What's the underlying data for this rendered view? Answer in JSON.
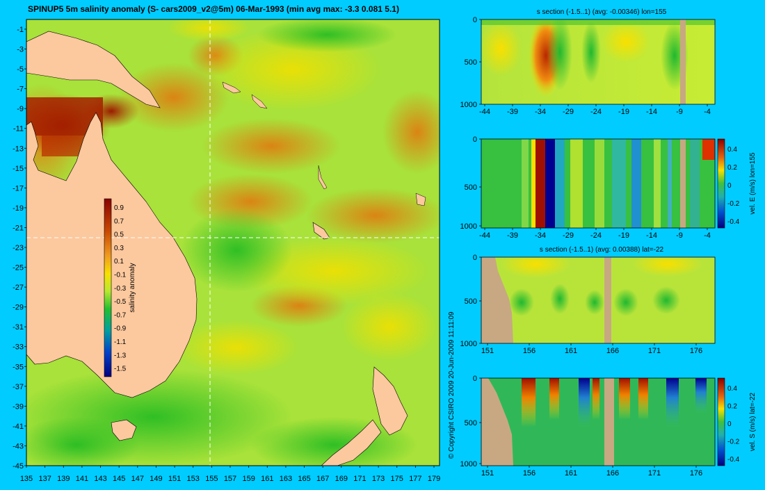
{
  "title": "SPINUP5 5m salinity anomaly (S- cars2009_v2@5m) 06-Mar-1993 (min avg max: -3.3 0.081 5.1)",
  "map": {
    "lat_ticks": [
      "-1",
      "-3",
      "-5",
      "-7",
      "-9",
      "-11",
      "-13",
      "-15",
      "-17",
      "-19",
      "-21",
      "-23",
      "-25",
      "-27",
      "-29",
      "-31",
      "-33",
      "-35",
      "-37",
      "-39",
      "-41",
      "-43",
      "-45"
    ],
    "lon_ticks": [
      "135",
      "137",
      "139",
      "141",
      "143",
      "145",
      "147",
      "149",
      "151",
      "153",
      "155",
      "157",
      "159",
      "161",
      "163",
      "165",
      "167",
      "169",
      "171",
      "173",
      "175",
      "177",
      "179"
    ],
    "colorbar": {
      "label": "salinity anomaly",
      "ticks": [
        "0.9",
        "0.7",
        "0.5",
        "0.3",
        "0.1",
        "-0.1",
        "-0.3",
        "-0.5",
        "-0.7",
        "-0.9",
        "-1.1",
        "-1.3",
        "-1.5"
      ]
    }
  },
  "copyright": "© Copyright CSIRO 2009   20-Jun-2009 11:11:09",
  "sections": [
    {
      "title": "s section (-1.5..1) (avg: -0.00346) lon=155",
      "depth_ticks": [
        "0",
        "500",
        "1000"
      ],
      "x_ticks": [
        "-44",
        "-39",
        "-34",
        "-29",
        "-24",
        "-19",
        "-14",
        "-9",
        "-4"
      ]
    },
    {
      "title": "",
      "depth_ticks": [
        "0",
        "500",
        "1000"
      ],
      "x_ticks": [
        "-44",
        "-39",
        "-34",
        "-29",
        "-24",
        "-19",
        "-14",
        "-9",
        "-4"
      ],
      "colorbar": {
        "label": "vel. E (m/s) lon=155",
        "ticks": [
          "0.4",
          "0.2",
          "0",
          "-0.2",
          "-0.4"
        ]
      }
    },
    {
      "title": "s section (-1.5..1) (avg: 0.00388) lat=-22",
      "depth_ticks": [
        "0",
        "500",
        "1000"
      ],
      "x_ticks": [
        "151",
        "156",
        "161",
        "166",
        "171",
        "176"
      ]
    },
    {
      "title": "",
      "depth_ticks": [
        "0",
        "500",
        "1000"
      ],
      "x_ticks": [
        "151",
        "156",
        "161",
        "166",
        "171",
        "176"
      ],
      "colorbar": {
        "label": "vel. S (m/s) lat=-22",
        "ticks": [
          "0.4",
          "0.2",
          "0",
          "-0.2",
          "-0.4"
        ]
      }
    }
  ],
  "colors": {
    "background": "#00ccff",
    "land": "#fcc89e",
    "section_land": "#c8a882",
    "ocean_base": "#9ee63c"
  }
}
